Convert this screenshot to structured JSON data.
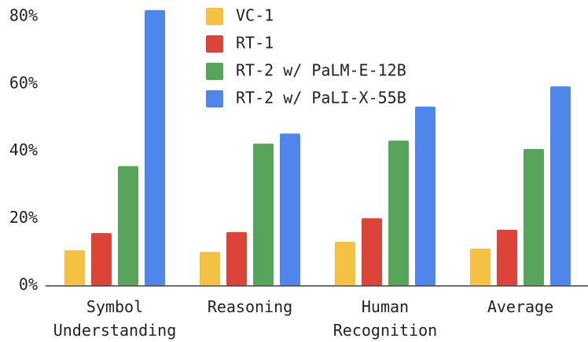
{
  "chart_data": {
    "type": "bar",
    "categories": [
      "Symbol Understanding",
      "Reasoning",
      "Human Recognition",
      "Average"
    ],
    "series": [
      {
        "name": "VC-1",
        "color": "#f4c142",
        "values": [
          10.5,
          10,
          13,
          11
        ]
      },
      {
        "name": "RT-1",
        "color": "#db4437",
        "values": [
          15.6,
          15.9,
          20,
          16.6
        ]
      },
      {
        "name": "RT-2 w/ PaLM-E-12B",
        "color": "#57a55a",
        "values": [
          35.5,
          42.2,
          43.1,
          40.6
        ]
      },
      {
        "name": "RT-2 w/ PaLI-X-55B",
        "color": "#4f86ec",
        "values": [
          81.9,
          45.2,
          53.2,
          59.2
        ]
      }
    ],
    "ylim": [
      0,
      80
    ],
    "yticks": [
      {
        "value": 0,
        "label": "0%"
      },
      {
        "value": 20,
        "label": "20%"
      },
      {
        "value": 40,
        "label": "40%"
      },
      {
        "value": 60,
        "label": "60%"
      },
      {
        "value": 80,
        "label": "80%"
      }
    ],
    "grid": false,
    "legend": "top"
  }
}
